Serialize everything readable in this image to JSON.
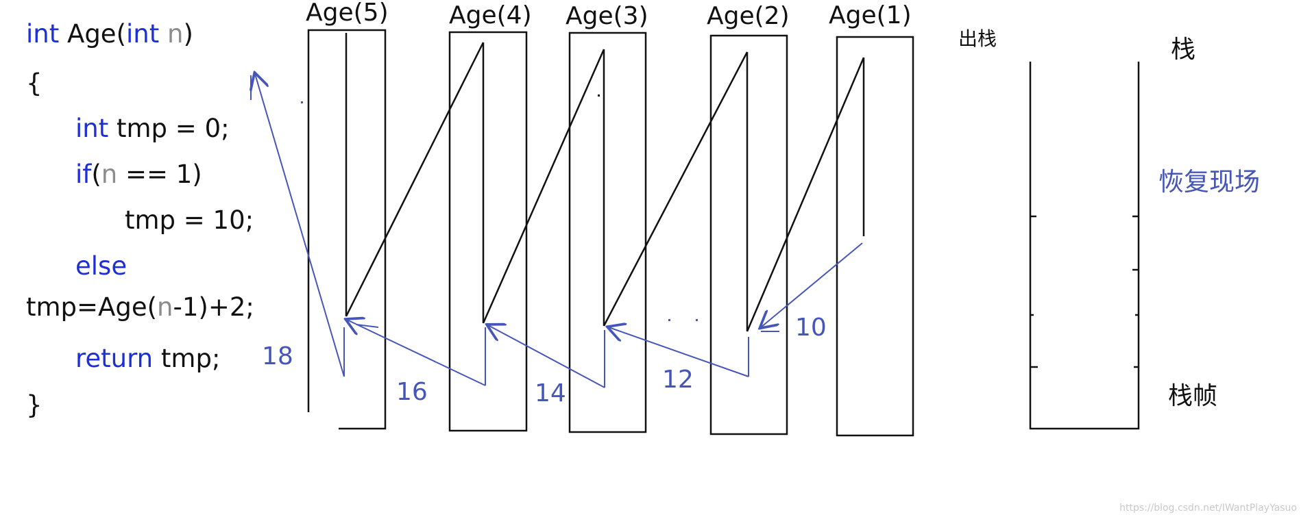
{
  "code": {
    "l1_kw1": "int",
    "l1_fn": " Age(",
    "l1_kw2": "int",
    "l1_sp": " ",
    "l1_param": "n",
    "l1_end": ")",
    "l2": "{",
    "l3_kw": "int",
    "l3_rest": " tmp = 0;",
    "l4_kw": "if",
    "l4_a": "(",
    "l4_param": "n",
    "l4_b": " == 1)",
    "l5": "tmp = 10;",
    "l6_kw": "else",
    "l7_a": "tmp=Age(",
    "l7_param": "n",
    "l7_b": "-1)+2;",
    "l8_kw": "return",
    "l8_rest": " tmp;",
    "l9": "}"
  },
  "frames": [
    "Age(5)",
    "Age(4)",
    "Age(3)",
    "Age(2)",
    "Age(1)"
  ],
  "return_values": [
    "18",
    "16",
    "14",
    "12",
    "10"
  ],
  "stack": {
    "pop_label": "出栈",
    "stack_label": "栈",
    "restore_label": "恢复现场",
    "frame_label": "栈帧"
  },
  "watermark": "https://blog.csdn.net/IWantPlayYasuo",
  "colors": {
    "black": "#111111",
    "blue": "#4556b8",
    "keyword": "#1d2fd6"
  }
}
